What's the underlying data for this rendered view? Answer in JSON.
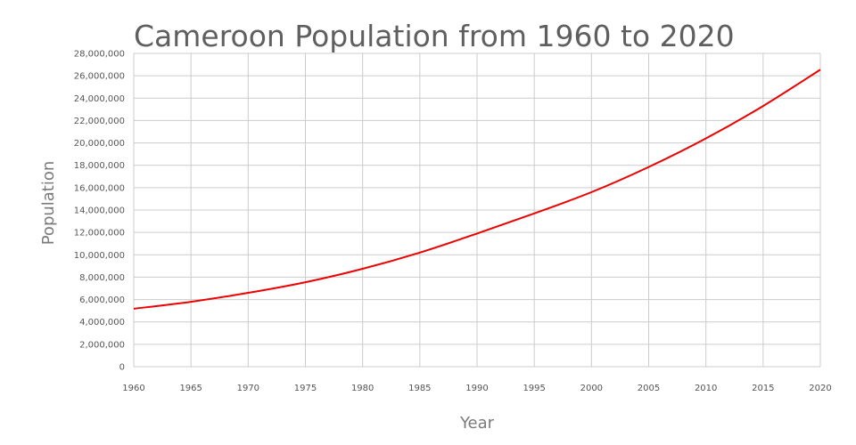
{
  "chart_data": {
    "type": "line",
    "title": "Cameroon Population from 1960 to 2020",
    "xlabel": "Year",
    "ylabel": "Population",
    "xlim": [
      1960,
      2020
    ],
    "ylim": [
      0,
      28000000
    ],
    "x_ticks": [
      1960,
      1965,
      1970,
      1975,
      1980,
      1985,
      1990,
      1995,
      2000,
      2005,
      2010,
      2015,
      2020
    ],
    "y_ticks": [
      0,
      2000000,
      4000000,
      6000000,
      8000000,
      10000000,
      12000000,
      14000000,
      16000000,
      18000000,
      20000000,
      22000000,
      24000000,
      26000000,
      28000000
    ],
    "y_tick_labels": [
      "0",
      "2,000,000",
      "4,000,000",
      "6,000,000",
      "8,000,000",
      "10,000,000",
      "12,000,000",
      "14,000,000",
      "16,000,000",
      "18,000,000",
      "20,000,000",
      "22,000,000",
      "24,000,000",
      "26,000,000",
      "28,000,000"
    ],
    "grid": true,
    "colors": {
      "series": "#ee0000",
      "grid": "#cccccc",
      "title": "#5f5f5f"
    },
    "series": [
      {
        "name": "Population",
        "x": [
          1960,
          1965,
          1970,
          1975,
          1980,
          1985,
          1990,
          1995,
          2000,
          2005,
          2010,
          2015,
          2020
        ],
        "values": [
          5180000,
          5800000,
          6600000,
          7550000,
          8750000,
          10200000,
          11900000,
          13700000,
          15600000,
          17850000,
          20400000,
          23300000,
          26550000
        ]
      }
    ]
  }
}
